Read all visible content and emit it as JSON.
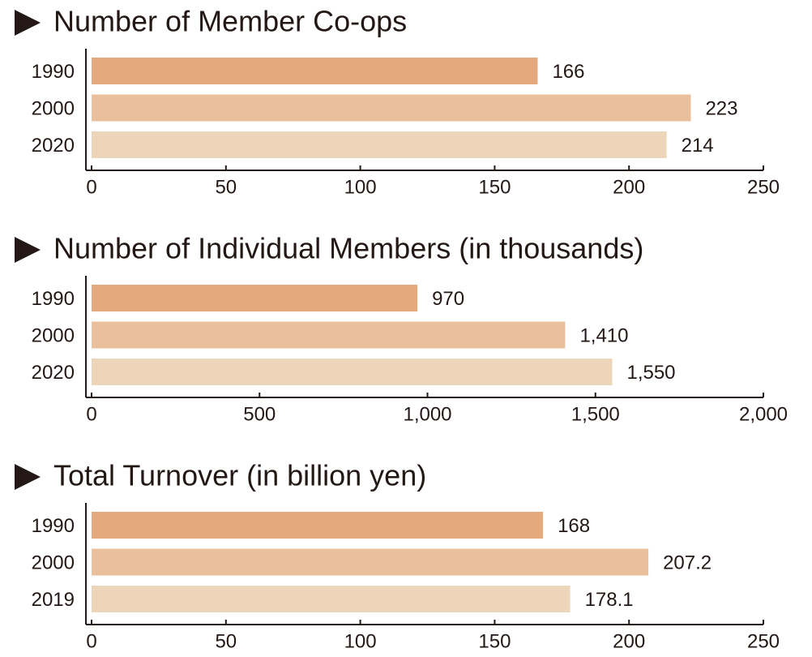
{
  "chart_data": [
    {
      "type": "bar",
      "orientation": "horizontal",
      "title": "Number of Member Co-ops",
      "categories": [
        "1990",
        "2000",
        "2020"
      ],
      "values": [
        166,
        223,
        214
      ],
      "colors": [
        "#e4a97c",
        "#eabf9b",
        "#ecd5b8"
      ],
      "xlim": [
        0,
        250
      ],
      "xticks": [
        0,
        50,
        100,
        150,
        200,
        250
      ]
    },
    {
      "type": "bar",
      "orientation": "horizontal",
      "title": "Number of Individual Members (in thousands)",
      "categories": [
        "1990",
        "2000",
        "2020"
      ],
      "values": [
        970,
        1410,
        1550
      ],
      "value_labels": [
        "970",
        "1,410",
        "1,550"
      ],
      "colors": [
        "#e4a97c",
        "#eabf9b",
        "#ecd5b8"
      ],
      "xlim": [
        0,
        2000
      ],
      "xticks": [
        0,
        500,
        {
          "value": 1000,
          "label": "1,000"
        },
        {
          "value": 1500,
          "label": "1,500"
        },
        {
          "value": 2000,
          "label": "2,000"
        }
      ]
    },
    {
      "type": "bar",
      "orientation": "horizontal",
      "title": "Total Turnover (in billion yen)",
      "categories": [
        "1990",
        "2000",
        "2019"
      ],
      "values": [
        168,
        207.2,
        178.1
      ],
      "colors": [
        "#e4a97c",
        "#eabf9b",
        "#ecd5b8"
      ],
      "xlim": [
        0,
        250
      ],
      "xticks": [
        0,
        50,
        100,
        150,
        200,
        250
      ]
    }
  ]
}
